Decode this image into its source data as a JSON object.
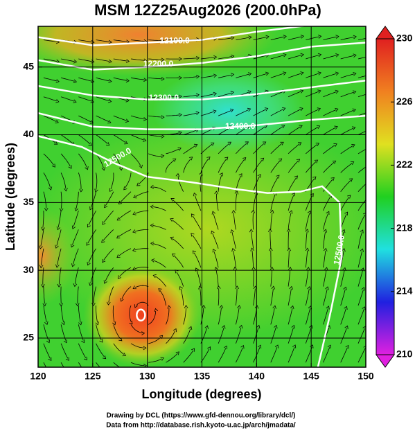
{
  "chart_data": {
    "type": "map",
    "title": "MSM 12Z25Aug2026 (200.0hPa)",
    "xlabel": "Longitude (degrees)",
    "ylabel": "Latitude  (degrees)",
    "xlim": [
      120,
      150
    ],
    "xticks": [
      120,
      125,
      130,
      135,
      140,
      145,
      150
    ],
    "ylim": [
      22.85,
      48.0
    ],
    "yticks": [
      25,
      30,
      35,
      40,
      45
    ],
    "grid": true,
    "colorbar": {
      "lim": [
        210,
        230
      ],
      "ticks": [
        210,
        214,
        218,
        222,
        226,
        230
      ],
      "colors": [
        "#e020e0",
        "#2020e0",
        "#20e0e0",
        "#20d020",
        "#e0e020",
        "#f08020",
        "#e02020"
      ]
    },
    "contours": [
      {
        "value": 12100,
        "label": "12100.0"
      },
      {
        "value": 12200,
        "label": "12200.0"
      },
      {
        "value": 12300,
        "label": "12300.0"
      },
      {
        "value": 12400,
        "label": "12400.0"
      },
      {
        "value": 12500,
        "label": "12500.0"
      },
      {
        "value": 12500,
        "label": "12500.0"
      }
    ],
    "footer": [
      "Drawing by DCL (https://www.gfd-dennou.org/library/dcl/)",
      "Data from http://database.rish.kyoto-u.ac.jp/arch/jmadata/"
    ]
  }
}
